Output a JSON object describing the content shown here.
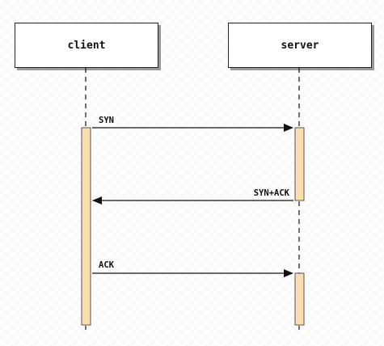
{
  "participants": {
    "client": {
      "label": "client"
    },
    "server": {
      "label": "server"
    }
  },
  "messages": [
    {
      "label": "SYN",
      "from": "client",
      "to": "server"
    },
    {
      "label": "SYN+ACK",
      "from": "server",
      "to": "client"
    },
    {
      "label": "ACK",
      "from": "client",
      "to": "server"
    }
  ],
  "colors": {
    "activation_fill": "#f9dfb0",
    "line": "#111111"
  }
}
